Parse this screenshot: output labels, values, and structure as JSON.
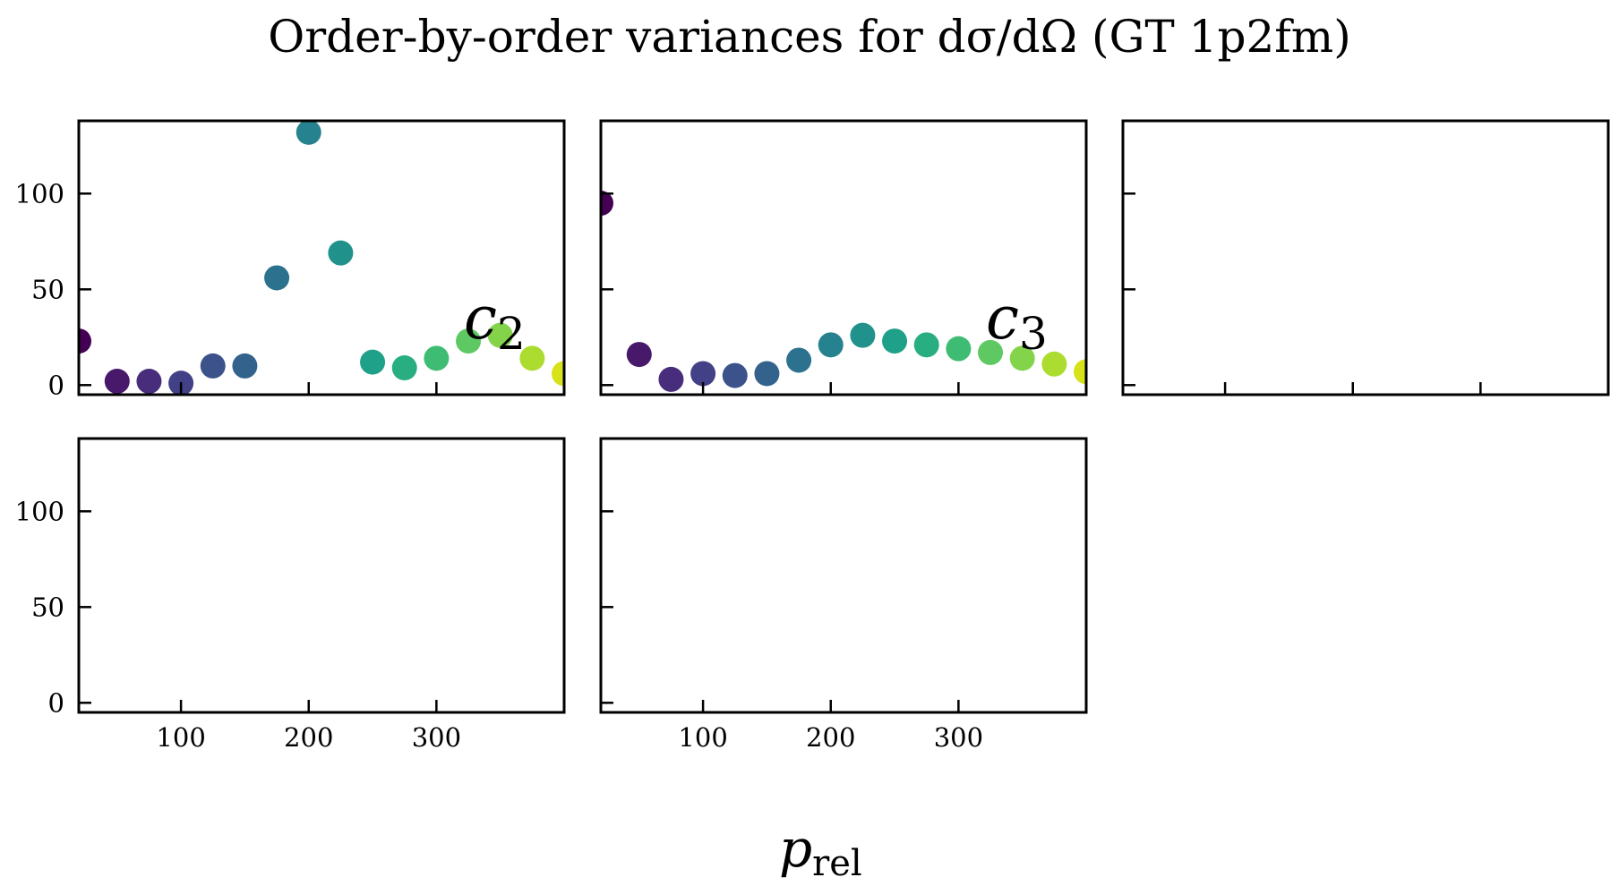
{
  "figure": {
    "title_text": "Order-by-order variances for dσ/dΩ (GT 1p2fm)",
    "xlabel_main": "p",
    "xlabel_sub": "rel"
  },
  "chart_data": [
    {
      "type": "scatter",
      "annotation": {
        "main": "c",
        "sub": "2"
      },
      "xlim": [
        20,
        400
      ],
      "ylim": [
        -5,
        138
      ],
      "yticks": [
        0,
        50,
        100
      ],
      "xticks": [
        100,
        200,
        300
      ],
      "show_yticklabels": true,
      "show_xticklabels": false,
      "points": [
        {
          "x": 20,
          "y": 23,
          "color": "#440154"
        },
        {
          "x": 50,
          "y": 2,
          "color": "#48186a"
        },
        {
          "x": 75,
          "y": 2,
          "color": "#472d7b"
        },
        {
          "x": 100,
          "y": 1,
          "color": "#424086"
        },
        {
          "x": 125,
          "y": 10,
          "color": "#3b528b"
        },
        {
          "x": 150,
          "y": 10,
          "color": "#33638d"
        },
        {
          "x": 175,
          "y": 56,
          "color": "#2c728e"
        },
        {
          "x": 200,
          "y": 132,
          "color": "#26828e"
        },
        {
          "x": 225,
          "y": 69,
          "color": "#21918c"
        },
        {
          "x": 250,
          "y": 12,
          "color": "#1fa088"
        },
        {
          "x": 275,
          "y": 9,
          "color": "#28ae80"
        },
        {
          "x": 300,
          "y": 14,
          "color": "#3fbc73"
        },
        {
          "x": 325,
          "y": 23,
          "color": "#5ec962"
        },
        {
          "x": 350,
          "y": 26,
          "color": "#84d44b"
        },
        {
          "x": 375,
          "y": 14,
          "color": "#addc30"
        },
        {
          "x": 400,
          "y": 6,
          "color": "#d8e219"
        }
      ]
    },
    {
      "type": "scatter",
      "annotation": {
        "main": "c",
        "sub": "3"
      },
      "xlim": [
        20,
        400
      ],
      "ylim": [
        -5,
        138
      ],
      "yticks": [
        0,
        50,
        100
      ],
      "xticks": [
        100,
        200,
        300
      ],
      "show_yticklabels": false,
      "show_xticklabels": false,
      "points": [
        {
          "x": 20,
          "y": 95,
          "color": "#440154"
        },
        {
          "x": 50,
          "y": 16,
          "color": "#48186a"
        },
        {
          "x": 75,
          "y": 3,
          "color": "#472d7b"
        },
        {
          "x": 100,
          "y": 6,
          "color": "#424086"
        },
        {
          "x": 125,
          "y": 5,
          "color": "#3b528b"
        },
        {
          "x": 150,
          "y": 6,
          "color": "#33638d"
        },
        {
          "x": 175,
          "y": 13,
          "color": "#2c728e"
        },
        {
          "x": 200,
          "y": 21,
          "color": "#26828e"
        },
        {
          "x": 225,
          "y": 26,
          "color": "#21918c"
        },
        {
          "x": 250,
          "y": 23,
          "color": "#1fa088"
        },
        {
          "x": 275,
          "y": 21,
          "color": "#28ae80"
        },
        {
          "x": 300,
          "y": 19,
          "color": "#3fbc73"
        },
        {
          "x": 325,
          "y": 17,
          "color": "#5ec962"
        },
        {
          "x": 350,
          "y": 14,
          "color": "#84d44b"
        },
        {
          "x": 375,
          "y": 11,
          "color": "#addc30"
        },
        {
          "x": 400,
          "y": 7,
          "color": "#d8e219"
        }
      ]
    },
    {
      "type": "scatter",
      "annotation": null,
      "xlim": [
        20,
        400
      ],
      "ylim": [
        -5,
        138
      ],
      "yticks": [
        0,
        50,
        100
      ],
      "xticks": [
        100,
        200,
        300
      ],
      "show_yticklabels": false,
      "show_xticklabels": false,
      "points": []
    },
    {
      "type": "scatter",
      "annotation": null,
      "xlim": [
        20,
        400
      ],
      "ylim": [
        -5,
        138
      ],
      "yticks": [
        0,
        50,
        100
      ],
      "xticks": [
        100,
        200,
        300
      ],
      "show_yticklabels": true,
      "show_xticklabels": true,
      "points": []
    },
    {
      "type": "scatter",
      "annotation": null,
      "xlim": [
        20,
        400
      ],
      "ylim": [
        -5,
        138
      ],
      "yticks": [
        0,
        50,
        100
      ],
      "xticks": [
        100,
        200,
        300
      ],
      "show_yticklabels": false,
      "show_xticklabels": true,
      "points": []
    }
  ]
}
